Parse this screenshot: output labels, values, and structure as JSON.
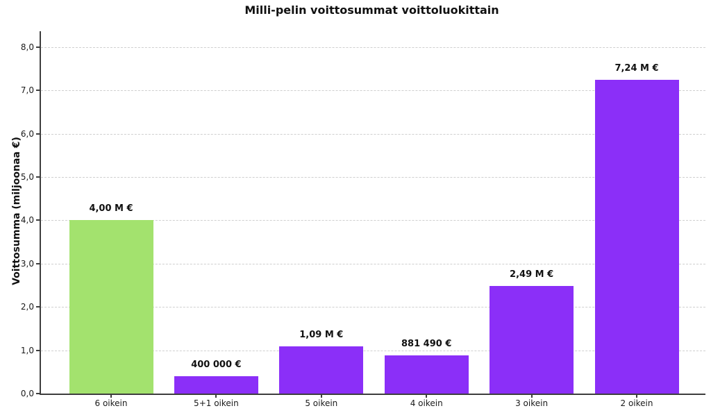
{
  "chart_data": {
    "type": "bar",
    "title": "Milli-pelin voittosummat voittoluokittain",
    "ylabel": "Voittosumma (miljoonaa €)",
    "xlabel": "",
    "categories": [
      "6 oikein",
      "5+1 oikein",
      "5 oikein",
      "4 oikein",
      "3 oikein",
      "2 oikein"
    ],
    "values": [
      4.0,
      0.4,
      1.09,
      0.88149,
      2.49,
      7.24
    ],
    "bar_value_labels": [
      "4,00 M €",
      "400 000 €",
      "1,09 M €",
      "881 490 €",
      "2,49 M €",
      "7,24 M €"
    ],
    "bar_colors": [
      "#a3e26e",
      "#8b2ff8",
      "#8b2ff8",
      "#8b2ff8",
      "#8b2ff8",
      "#8b2ff8"
    ],
    "ylim": [
      0,
      8.37
    ],
    "yticks": [
      0,
      1,
      2,
      3,
      4,
      5,
      6,
      7,
      8
    ],
    "ytick_labels": [
      "0,0",
      "1,0",
      "2,0",
      "3,0",
      "4,0",
      "5,0",
      "6,0",
      "7,0",
      "8,0"
    ],
    "grid": "horizontal-dashed",
    "legend": "none"
  },
  "colors": {
    "bar_green": "#a3e26e",
    "bar_purple": "#8b2ff8",
    "gridline": "#cfcfcf",
    "spine": "#3d3d3d",
    "text": "#111111"
  }
}
